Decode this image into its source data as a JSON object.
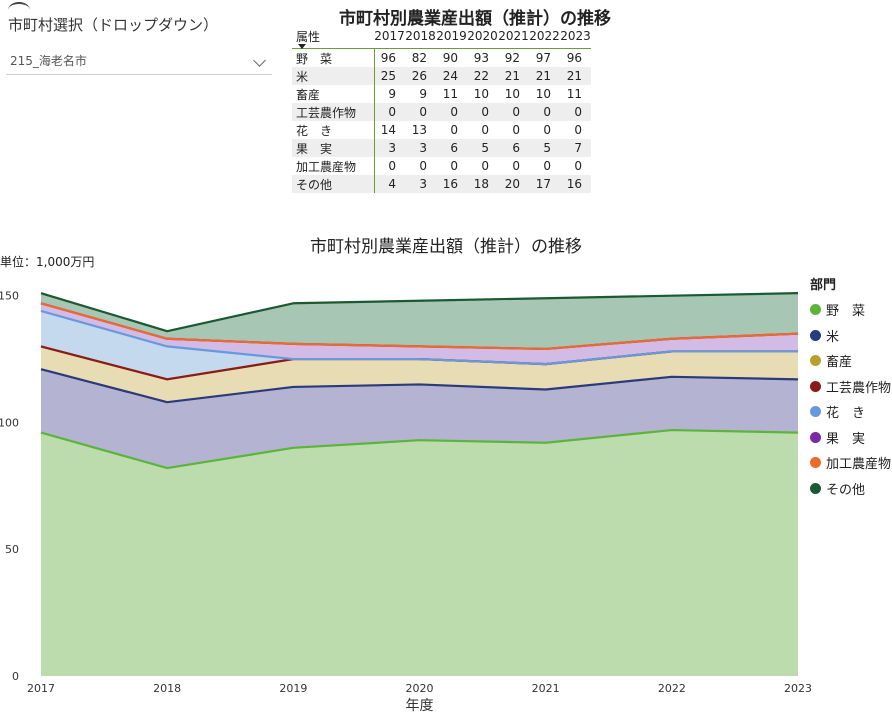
{
  "slicer": {
    "title": "市町村選択（ドロップダウン）",
    "selected": "215_海老名市"
  },
  "table": {
    "title": "市町村別農業産出額（推計）の推移",
    "attr_header": "属性",
    "years": [
      "2017",
      "2018",
      "2019",
      "2020",
      "2021",
      "2022",
      "2023"
    ],
    "rows": [
      {
        "label": "野　菜",
        "values": [
          "96",
          "82",
          "90",
          "93",
          "92",
          "97",
          "96"
        ]
      },
      {
        "label": "米",
        "values": [
          "25",
          "26",
          "24",
          "22",
          "21",
          "21",
          "21"
        ]
      },
      {
        "label": "畜産",
        "values": [
          "9",
          "9",
          "11",
          "10",
          "10",
          "10",
          "11"
        ]
      },
      {
        "label": "工芸農作物",
        "values": [
          "0",
          "0",
          "0",
          "0",
          "0",
          "0",
          "0"
        ]
      },
      {
        "label": "花　き",
        "values": [
          "14",
          "13",
          "0",
          "0",
          "0",
          "0",
          "0"
        ]
      },
      {
        "label": "果　実",
        "values": [
          "3",
          "3",
          "6",
          "5",
          "6",
          "5",
          "7"
        ]
      },
      {
        "label": "加工農産物",
        "values": [
          "0",
          "0",
          "0",
          "0",
          "0",
          "0",
          "0"
        ]
      },
      {
        "label": "その他",
        "values": [
          "4",
          "3",
          "16",
          "18",
          "20",
          "17",
          "16"
        ]
      }
    ]
  },
  "chart_data": {
    "type": "area",
    "stacked": true,
    "title": "市町村別農業産出額（推計）の推移",
    "unit_label": "単位：1,000万円",
    "xlabel": "年度",
    "ylabel": "",
    "x": [
      "2017",
      "2018",
      "2019",
      "2020",
      "2021",
      "2022",
      "2023"
    ],
    "ylim": [
      0,
      155
    ],
    "yticks": [
      0,
      50,
      100,
      150
    ],
    "legend_title": "部門",
    "legend_position": "right",
    "series": [
      {
        "name": "野　菜",
        "values": [
          96,
          82,
          90,
          93,
          92,
          97,
          96
        ],
        "color": "#5cb43a",
        "fill": "#bcdcae"
      },
      {
        "name": "米",
        "values": [
          25,
          26,
          24,
          22,
          21,
          21,
          21
        ],
        "color": "#2b3a7a",
        "fill": "#b4b4d2"
      },
      {
        "name": "畜産",
        "values": [
          9,
          9,
          11,
          10,
          10,
          10,
          11
        ],
        "color": "#b8a030",
        "fill": "#e8dcb4"
      },
      {
        "name": "工芸農作物",
        "values": [
          0,
          0,
          0,
          0,
          0,
          0,
          0
        ],
        "color": "#8b1a1a",
        "fill": "#e2b4b4"
      },
      {
        "name": "花　き",
        "values": [
          14,
          13,
          0,
          0,
          0,
          0,
          0
        ],
        "color": "#6699dd",
        "fill": "#c4d8ee"
      },
      {
        "name": "果　実",
        "values": [
          3,
          3,
          6,
          5,
          6,
          5,
          7
        ],
        "color": "#7a2aa0",
        "fill": "#d2bce6"
      },
      {
        "name": "加工農産物",
        "values": [
          0,
          0,
          0,
          0,
          0,
          0,
          0
        ],
        "color": "#ee6a2a",
        "fill": "#f4c8a8"
      },
      {
        "name": "その他",
        "values": [
          4,
          3,
          16,
          18,
          20,
          17,
          16
        ],
        "color": "#1a5a32",
        "fill": "#a8c6b4"
      }
    ]
  }
}
